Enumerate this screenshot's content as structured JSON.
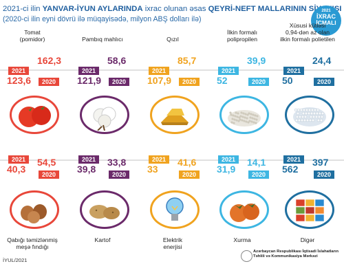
{
  "header": {
    "line1_pre": "2021-ci ilin",
    "line1_bold": "YANVAR-İYUN AYLARINDA",
    "line1_mid": "ixrac olunan əsas",
    "line1_bold2": "QEYRİ-NEFT MALLARININ SİYAHISI",
    "line2": "(2020-ci ilin eyni dövrü ilə müqayisədə, milyon ABŞ dolları ilə)"
  },
  "badge": {
    "year": "2021",
    "line1": "İXRAC",
    "line2": "İCMALI"
  },
  "colors": {
    "red": "#e8473a",
    "purple": "#6b2a6a",
    "orange": "#f0a31f",
    "lightblue": "#3db6e2",
    "teal": "#1f6fa0"
  },
  "items": [
    {
      "name": "Tomat\n(pomidor)",
      "y2021": "2021",
      "v2021": "123,6",
      "y2020": "2020",
      "v2020": "162,3",
      "icon": "tomato-icon"
    },
    {
      "name": "Pambıq mahlıcı",
      "y2021": "2021",
      "v2021": "121,9",
      "y2020": "2020",
      "v2020": "58,6",
      "icon": "cotton-icon"
    },
    {
      "name": "Qızıl",
      "y2021": "2021",
      "v2021": "107,9",
      "y2020": "2020",
      "v2020": "85,7",
      "icon": "gold-icon"
    },
    {
      "name": "İlkin formalı\npolipropilen",
      "y2021": "2021",
      "v2021": "52",
      "y2020": "2020",
      "v2020": "39,9",
      "icon": "polypropylene-icon"
    },
    {
      "name": "Xüsusi kütləsi\n0,94-dən az olan\nilkin formalı polietilen",
      "y2021": "2021",
      "v2021": "50",
      "y2020": "2020",
      "v2020": "24,4",
      "icon": "polyethylene-icon"
    },
    {
      "name": "Qabığı təmizlənmiş\nmeşə fındığı",
      "y2021": "2021",
      "v2021": "40,3",
      "y2020": "2020",
      "v2020": "54,5",
      "icon": "hazelnut-icon"
    },
    {
      "name": "Kartof",
      "y2021": "2021",
      "v2021": "39,8",
      "y2020": "2020",
      "v2020": "33,8",
      "icon": "potato-icon"
    },
    {
      "name": "Elektrik\nenerjisi",
      "y2021": "2021",
      "v2021": "33",
      "y2020": "2020",
      "v2020": "41,6",
      "icon": "lightbulb-icon"
    },
    {
      "name": "Xurma",
      "y2021": "2021",
      "v2021": "31,9",
      "y2020": "2020",
      "v2020": "14,1",
      "icon": "persimmon-icon"
    },
    {
      "name": "Digər",
      "y2021": "2021",
      "v2021": "562",
      "y2020": "2020",
      "v2020": "397",
      "icon": "containers-icon"
    }
  ],
  "footer": {
    "date": "İYUL/2021",
    "org": "Azərbaycan Respublikası İqtisadi İslahatların\nTəhlili və Kommunikasiya Mərkəzi"
  }
}
